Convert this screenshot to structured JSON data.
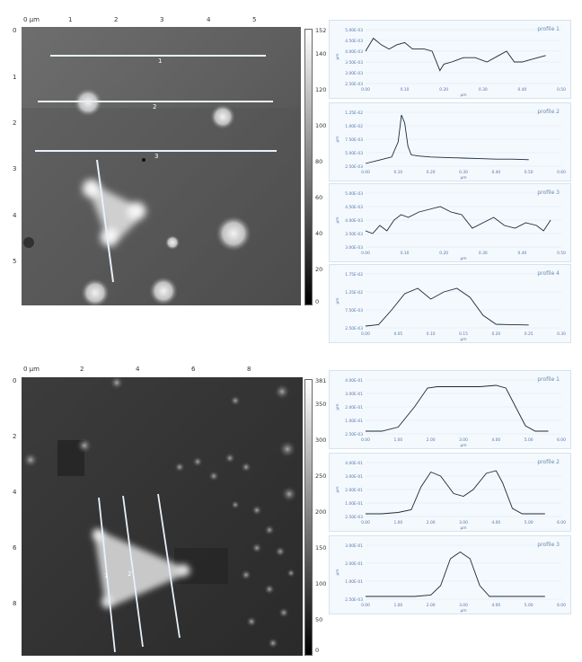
{
  "panels": [
    {
      "image": {
        "x_axis": {
          "unit_label": "0 µm",
          "ticks": [
            "1",
            "2",
            "3",
            "4",
            "5"
          ]
        },
        "y_axis": {
          "ticks": [
            "0",
            "1",
            "2",
            "3",
            "4",
            "5"
          ]
        },
        "colorbar": {
          "top_label": "152 nm",
          "ticks": [
            "140",
            "120",
            "100",
            "80",
            "60",
            "40",
            "20",
            "0"
          ]
        },
        "line_labels": [
          "1",
          "2",
          "3"
        ]
      },
      "chart_data": [
        {
          "type": "line",
          "title": "profile 1",
          "xlabel": "µm",
          "ylabel": "µm",
          "x_ticks": [
            "0.00",
            "0.10",
            "0.20",
            "0.30",
            "0.40",
            "0.50"
          ],
          "y_ticks": [
            "5.00E-03",
            "4.50E-03",
            "4.00E-03",
            "3.50E-03",
            "3.00E-03",
            "2.50E-03"
          ],
          "xlim": [
            0,
            0.5
          ],
          "ylim": [
            0.0025,
            0.005
          ],
          "x": [
            0.0,
            0.02,
            0.04,
            0.06,
            0.08,
            0.1,
            0.12,
            0.15,
            0.17,
            0.19,
            0.2,
            0.22,
            0.25,
            0.28,
            0.31,
            0.34,
            0.36,
            0.38,
            0.4,
            0.42,
            0.44,
            0.46
          ],
          "y": [
            0.004,
            0.0046,
            0.0043,
            0.0041,
            0.0043,
            0.0044,
            0.0041,
            0.0041,
            0.004,
            0.0031,
            0.0034,
            0.0035,
            0.0037,
            0.0037,
            0.0035,
            0.0038,
            0.004,
            0.0035,
            0.0035,
            0.0036,
            0.0037,
            0.0038
          ]
        },
        {
          "type": "line",
          "title": "profile 2",
          "xlabel": "µm",
          "ylabel": "µm",
          "x_ticks": [
            "0.00",
            "0.10",
            "0.20",
            "0.30",
            "0.40",
            "0.50",
            "0.60"
          ],
          "y_ticks": [
            "1.25E-02",
            "1.00E-02",
            "7.50E-03",
            "5.00E-03",
            "2.50E-03"
          ],
          "xlim": [
            0,
            0.6
          ],
          "ylim": [
            0.0025,
            0.0125
          ],
          "x": [
            0.0,
            0.04,
            0.08,
            0.1,
            0.11,
            0.12,
            0.13,
            0.14,
            0.16,
            0.2,
            0.25,
            0.3,
            0.35,
            0.4,
            0.45,
            0.5
          ],
          "y": [
            0.003,
            0.0036,
            0.0042,
            0.007,
            0.012,
            0.0105,
            0.0062,
            0.0046,
            0.0044,
            0.0042,
            0.0041,
            0.004,
            0.0039,
            0.0038,
            0.0038,
            0.0037
          ]
        },
        {
          "type": "line",
          "title": "profile 3",
          "xlabel": "µm",
          "ylabel": "µm",
          "x_ticks": [
            "0.00",
            "0.10",
            "0.20",
            "0.30",
            "0.40",
            "0.50"
          ],
          "y_ticks": [
            "5.00E-03",
            "4.50E-03",
            "4.00E-03",
            "3.50E-03",
            "3.00E-03"
          ],
          "xlim": [
            0,
            0.55
          ],
          "ylim": [
            0.003,
            0.005
          ],
          "x": [
            0.0,
            0.02,
            0.04,
            0.06,
            0.08,
            0.1,
            0.12,
            0.15,
            0.18,
            0.21,
            0.24,
            0.27,
            0.3,
            0.33,
            0.36,
            0.39,
            0.42,
            0.45,
            0.48,
            0.5,
            0.52
          ],
          "y": [
            0.0036,
            0.0035,
            0.0038,
            0.0036,
            0.004,
            0.0042,
            0.0041,
            0.0043,
            0.0044,
            0.0045,
            0.0043,
            0.0042,
            0.0037,
            0.0039,
            0.0041,
            0.0038,
            0.0037,
            0.0039,
            0.0038,
            0.0036,
            0.004
          ]
        },
        {
          "type": "line",
          "title": "profile 4",
          "xlabel": "µm",
          "ylabel": "µm",
          "x_ticks": [
            "0.00",
            "0.05",
            "0.10",
            "0.15",
            "0.20",
            "0.25",
            "0.30"
          ],
          "y_ticks": [
            "1.75E-02",
            "1.25E-02",
            "7.50E-03",
            "2.50E-03"
          ],
          "xlim": [
            0,
            0.3
          ],
          "ylim": [
            0.0025,
            0.0175
          ],
          "x": [
            0.0,
            0.02,
            0.04,
            0.06,
            0.08,
            0.1,
            0.12,
            0.14,
            0.16,
            0.18,
            0.2,
            0.22,
            0.25
          ],
          "y": [
            0.003,
            0.0034,
            0.0075,
            0.012,
            0.0135,
            0.0105,
            0.0125,
            0.0135,
            0.011,
            0.006,
            0.0035,
            0.0034,
            0.0033
          ]
        }
      ]
    },
    {
      "image": {
        "x_axis": {
          "unit_label": "0 µm",
          "ticks": [
            "2",
            "4",
            "6",
            "8"
          ]
        },
        "y_axis": {
          "ticks": [
            "0",
            "2",
            "4",
            "6",
            "8"
          ]
        },
        "colorbar": {
          "top_label": "381 nm",
          "ticks": [
            "350",
            "300",
            "250",
            "200",
            "150",
            "100",
            "50",
            "0"
          ]
        },
        "line_labels": [
          "1",
          "2"
        ]
      },
      "chart_data": [
        {
          "type": "line",
          "title": "profile 1",
          "xlabel": "µm",
          "ylabel": "µm",
          "x_ticks": [
            "0.00",
            "1.00",
            "2.00",
            "3.00",
            "4.00",
            "5.00",
            "6.00"
          ],
          "y_ticks": [
            "4.00E-01",
            "3.00E-01",
            "2.00E-01",
            "1.00E-01",
            "2.50E-03"
          ],
          "xlim": [
            0,
            6
          ],
          "ylim": [
            0,
            0.4
          ],
          "x": [
            0.0,
            0.5,
            1.0,
            1.5,
            1.9,
            2.2,
            2.6,
            3.0,
            3.5,
            4.0,
            4.3,
            4.6,
            4.9,
            5.2,
            5.6
          ],
          "y": [
            0.02,
            0.02,
            0.05,
            0.2,
            0.34,
            0.35,
            0.35,
            0.35,
            0.35,
            0.36,
            0.34,
            0.2,
            0.06,
            0.02,
            0.02
          ]
        },
        {
          "type": "line",
          "title": "profile 2",
          "xlabel": "µm",
          "ylabel": "µm",
          "x_ticks": [
            "0.00",
            "1.00",
            "2.00",
            "3.00",
            "4.00",
            "5.00",
            "6.00"
          ],
          "y_ticks": [
            "4.00E-01",
            "3.00E-01",
            "2.00E-01",
            "1.00E-01",
            "2.50E-03"
          ],
          "xlim": [
            0,
            6
          ],
          "ylim": [
            0,
            0.4
          ],
          "x": [
            0.0,
            0.5,
            1.0,
            1.4,
            1.7,
            2.0,
            2.3,
            2.7,
            3.0,
            3.3,
            3.7,
            4.0,
            4.2,
            4.5,
            4.8,
            5.5
          ],
          "y": [
            0.02,
            0.02,
            0.03,
            0.05,
            0.22,
            0.33,
            0.3,
            0.17,
            0.15,
            0.2,
            0.32,
            0.34,
            0.25,
            0.06,
            0.02,
            0.02
          ]
        },
        {
          "type": "line",
          "title": "profile 3",
          "xlabel": "µm",
          "ylabel": "µm",
          "x_ticks": [
            "0.00",
            "1.00",
            "2.00",
            "3.00",
            "4.00",
            "5.00",
            "6.00"
          ],
          "y_ticks": [
            "3.00E-01",
            "2.00E-01",
            "1.00E-01",
            "2.50E-03"
          ],
          "xlim": [
            0,
            6
          ],
          "ylim": [
            0,
            0.4
          ],
          "x": [
            0.0,
            0.5,
            1.0,
            1.5,
            2.0,
            2.3,
            2.6,
            2.9,
            3.2,
            3.5,
            3.8,
            4.2,
            5.0,
            5.5
          ],
          "y": [
            0.02,
            0.02,
            0.02,
            0.02,
            0.03,
            0.1,
            0.3,
            0.35,
            0.3,
            0.1,
            0.02,
            0.02,
            0.02,
            0.02
          ]
        }
      ]
    }
  ]
}
